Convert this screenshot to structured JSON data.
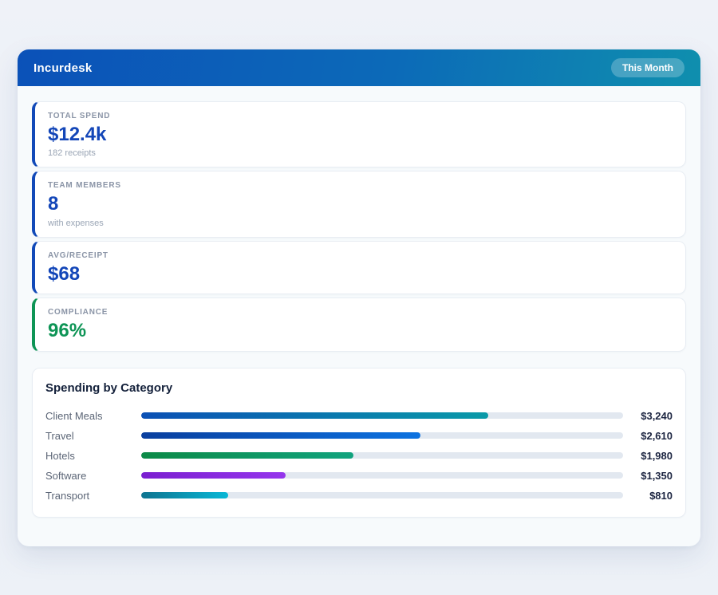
{
  "theme": {
    "header_gradient_start": "#0b51b8",
    "header_gradient_end": "#0f8fae",
    "accent_blue": "#1149b8",
    "accent_green": "#0d9455",
    "value_blue": "#1346b8",
    "value_green": "#0d9455",
    "bar_track": "#e2e8f0"
  },
  "header": {
    "title": "Incurdesk",
    "badge": "This Month"
  },
  "stats": [
    {
      "label": "TOTAL SPEND",
      "value": "$12.4k",
      "sub": "182 receipts",
      "accent": "#1149b8",
      "value_color": "#1346b8"
    },
    {
      "label": "TEAM MEMBERS",
      "value": "8",
      "sub": "with expenses",
      "accent": "#1149b8",
      "value_color": "#1346b8"
    },
    {
      "label": "AVG/RECEIPT",
      "value": "$68",
      "sub": "",
      "accent": "#1149b8",
      "value_color": "#1346b8"
    },
    {
      "label": "COMPLIANCE",
      "value": "96%",
      "sub": "",
      "accent": "#0d9455",
      "value_color": "#0d9455"
    }
  ],
  "chart": {
    "title": "Spending by Category"
  },
  "chart_data": {
    "type": "bar",
    "orientation": "horizontal",
    "title": "Spending by Category",
    "categories": [
      "Client Meals",
      "Travel",
      "Hotels",
      "Software",
      "Transport"
    ],
    "values": [
      3240,
      2610,
      1980,
      1350,
      810
    ],
    "value_labels": [
      "$3,240",
      "$2,610",
      "$1,980",
      "$1,350",
      "$810"
    ],
    "xlim": [
      0,
      4500
    ],
    "grid": false,
    "legend": false,
    "bar_colors": [
      {
        "from": "#0b50b5",
        "to": "#0a9aa8"
      },
      {
        "from": "#0a3f9e",
        "to": "#0c72e0"
      },
      {
        "from": "#0c8a47",
        "to": "#11a37e"
      },
      {
        "from": "#7a1fd0",
        "to": "#9536ec"
      },
      {
        "from": "#0e7490",
        "to": "#08b7d6"
      }
    ]
  }
}
